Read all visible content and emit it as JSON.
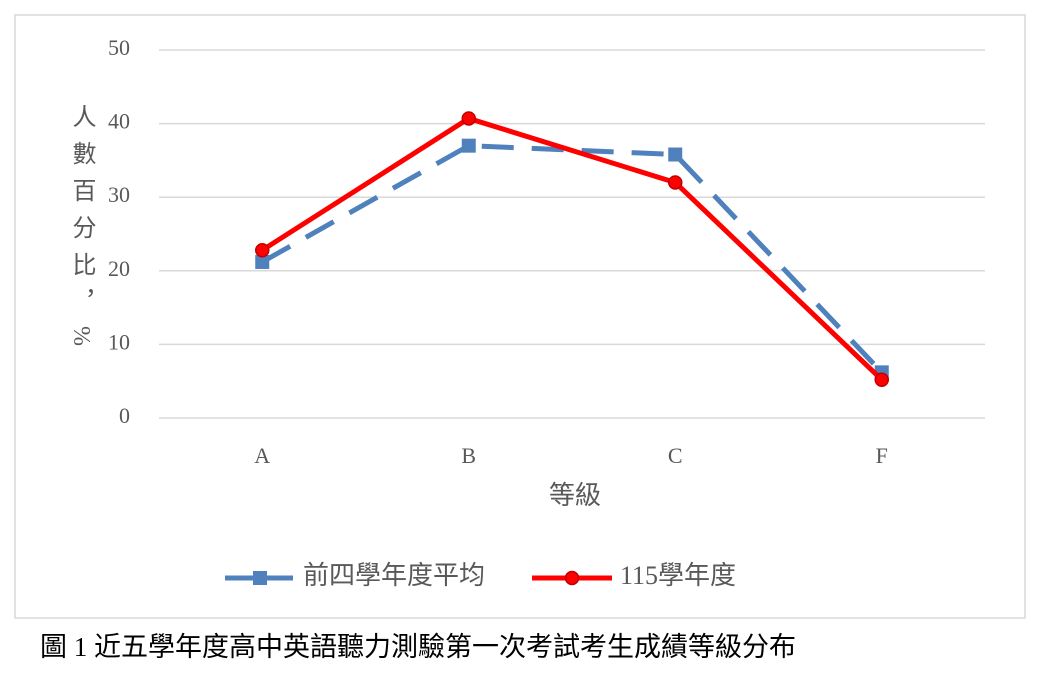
{
  "chart_data": {
    "type": "line",
    "y_label": "人數百分比，%",
    "x_label": "等級",
    "caption": "圖 1 近五學年度高中英語聽力測驗第一次考試考生成績等級分布",
    "categories": [
      "A",
      "B",
      "C",
      "F"
    ],
    "series": [
      {
        "name": "前四學年度平均",
        "color": "#4f81bd",
        "dashed": true,
        "marker": "square",
        "values": [
          21.2,
          37,
          35.8,
          6.2
        ]
      },
      {
        "name": "115學年度",
        "color": "#ff0000",
        "dashed": false,
        "marker": "circle",
        "values": [
          22.8,
          40.7,
          32,
          5.2
        ]
      }
    ],
    "ylim": [
      0,
      50
    ],
    "yticks": [
      0,
      10,
      20,
      30,
      40,
      50
    ],
    "grid": true,
    "legend": "bottom"
  }
}
